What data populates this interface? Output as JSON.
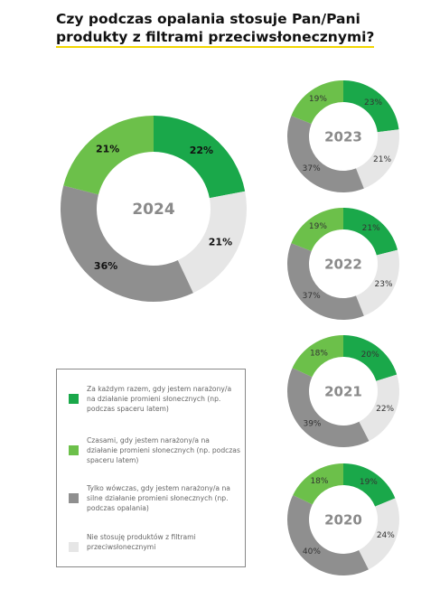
{
  "title": [
    "Czy podczas opalania stosuje Pan/Pani",
    "produkty z filtrami przeciwsłonecznymi?"
  ],
  "legend": {
    "items": [
      "Za każdym razem, gdy jestem narażony/a na działanie promieni słonecznych (np. podczas spaceru latem)",
      "Czasami, gdy jestem narażony/a na działanie promieni słonecznych (np. podczas spaceru latem)",
      "Tylko wówczas, gdy jestem narażony/a na silne działanie promieni słonecznych (np. podczas opalania)",
      "Nie stosuję produktów z filtrami przeciwsłonecznymi"
    ],
    "colors": [
      "#1aa84a",
      "#6cc04a",
      "#8f8f8f",
      "#e6e6e6"
    ]
  },
  "chart_data": [
    {
      "type": "pie",
      "label": "2024",
      "values": [
        22,
        21,
        36,
        21
      ],
      "value_labels": [
        "22%",
        "21%",
        "36%",
        "21%"
      ]
    },
    {
      "type": "pie",
      "label": "2023",
      "values": [
        23,
        19,
        37,
        21
      ],
      "value_labels": [
        "23%",
        "19%",
        "37%",
        "21%"
      ]
    },
    {
      "type": "pie",
      "label": "2022",
      "values": [
        21,
        19,
        37,
        23
      ],
      "value_labels": [
        "21%",
        "19%",
        "37%",
        "23%"
      ]
    },
    {
      "type": "pie",
      "label": "2021",
      "values": [
        20,
        18,
        39,
        22
      ],
      "value_labels": [
        "20%",
        "18%",
        "39%",
        "22%"
      ]
    },
    {
      "type": "pie",
      "label": "2020",
      "values": [
        19,
        18,
        40,
        24
      ],
      "value_labels": [
        "19%",
        "18%",
        "40%",
        "24%"
      ]
    }
  ]
}
